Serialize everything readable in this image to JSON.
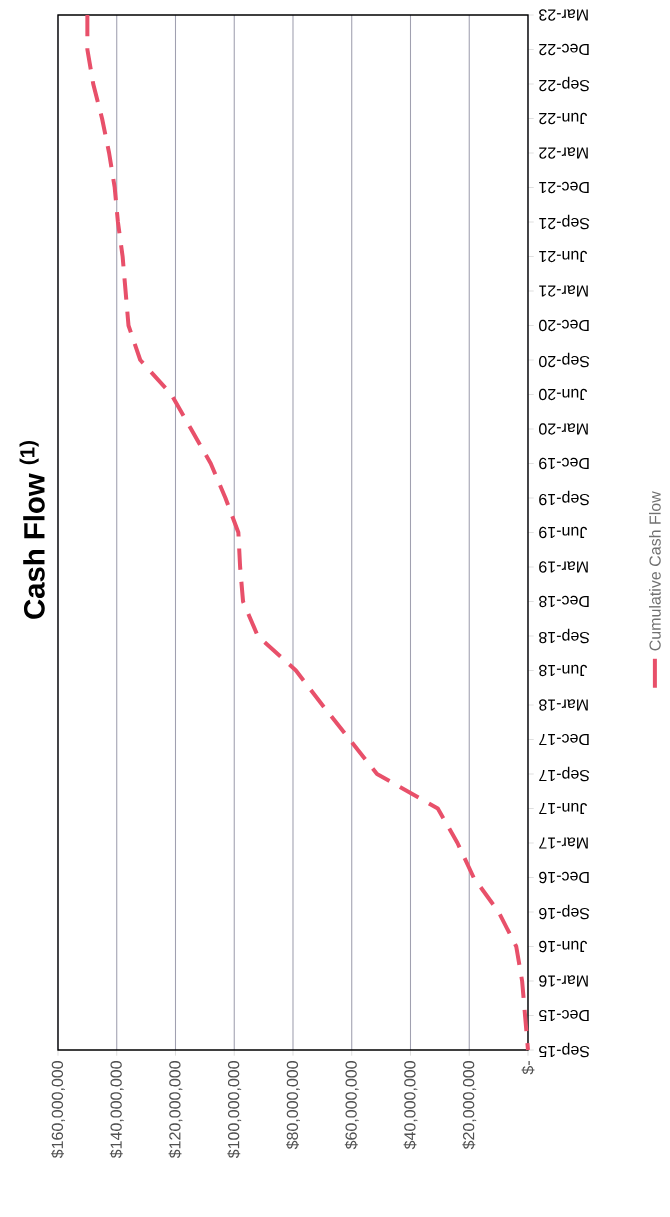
{
  "chart_data": {
    "type": "line",
    "title": "Cash Flow $^{(1)}$",
    "orientation": "horizontal",
    "categories": [
      "Mar-23",
      "Dec-22",
      "Sep-22",
      "Jun-22",
      "Mar-22",
      "Dec-21",
      "Sep-21",
      "Jun-21",
      "Mar-21",
      "Dec-20",
      "Sep-20",
      "Jun-20",
      "Mar-20",
      "Dec-19",
      "Sep-19",
      "Jun-19",
      "Mar-19",
      "Dec-18",
      "Sep-18",
      "Jun-18",
      "Mar-18",
      "Dec-17",
      "Sep-17",
      "Jun-17",
      "Mar-17",
      "Dec-16",
      "Sep-16",
      "Jun-16",
      "Mar-16",
      "Dec-15",
      "Sep-15"
    ],
    "series": [
      {
        "name": "Cumulative Cash Flow",
        "color": "#e8506a",
        "values": [
          150000000,
          150000000,
          148000000,
          145000000,
          142600000,
          140700000,
          139600000,
          138000000,
          137000000,
          136000000,
          132000000,
          121400000,
          114700000,
          108000000,
          103000000,
          98600000,
          98000000,
          97000000,
          92000000,
          79000000,
          70000000,
          60700000,
          51400000,
          30700000,
          24000000,
          18500000,
          10000000,
          4000000,
          2000000,
          1000000,
          0
        ]
      }
    ],
    "xlim": [
      160000000,
      0
    ],
    "xticks": [
      {
        "value": 0,
        "label": "$-"
      },
      {
        "value": 20000000,
        "label": "$20,000,000"
      },
      {
        "value": 40000000,
        "label": "$40,000,000"
      },
      {
        "value": 60000000,
        "label": "$60,000,000"
      },
      {
        "value": 80000000,
        "label": "$80,000,000"
      },
      {
        "value": 100000000,
        "label": "$100,000,000"
      },
      {
        "value": 120000000,
        "label": "$120,000,000"
      },
      {
        "value": 140000000,
        "label": "$140,000,000"
      },
      {
        "value": 160000000,
        "label": "$160,000,000"
      }
    ],
    "grid": "x",
    "legend": "right",
    "line_style": "dashed",
    "marker": "none"
  }
}
